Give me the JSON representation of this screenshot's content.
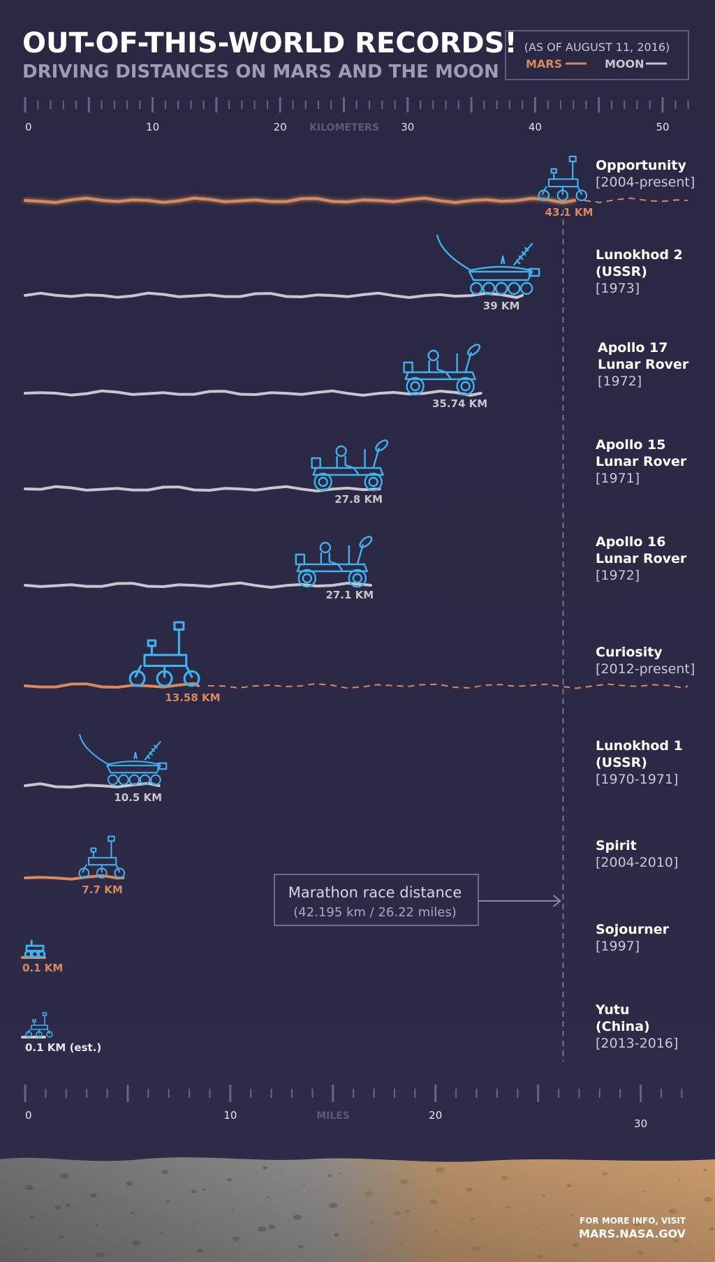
{
  "header": {
    "title": "OUT-OF-THIS-WORLD RECORDS!",
    "subtitle": "DRIVING DISTANCES ON MARS AND THE MOON"
  },
  "legend": {
    "date": "(AS OF AUGUST 11, 2016)",
    "mars": "MARS",
    "moon": "MOON"
  },
  "colors": {
    "mars": "#d88a5c",
    "moon": "#c8c6cc",
    "rover": "#3fb3ee",
    "background": "#2a2843",
    "axis": "#66658a"
  },
  "axis": {
    "km_label": "KILOMETERS",
    "miles_label": "MILES"
  },
  "marathon": {
    "title": "Marathon race distance",
    "detail": "(42.195 km / 26.22 miles)"
  },
  "footer": {
    "line1": "FOR MORE INFO, VISIT",
    "line2": "MARS.NASA.GOV"
  },
  "chart_data": {
    "type": "bar",
    "title": "OUT-OF-THIS-WORLD RECORDS!",
    "subtitle": "DRIVING DISTANCES ON MARS AND THE MOON",
    "xlabel": "KILOMETERS",
    "xlabel_secondary": "MILES",
    "xlim_km": [
      0,
      52
    ],
    "x_ticks_km": [
      0,
      10,
      20,
      30,
      40,
      50
    ],
    "x_ticks_miles": [
      0,
      10,
      20,
      30
    ],
    "reference_line": {
      "label": "Marathon race distance",
      "km": 42.195,
      "miles": 26.22
    },
    "legend_position": "top-right",
    "series": [
      {
        "name": "Opportunity",
        "detail": "",
        "years": "[2004-present]",
        "body": "mars",
        "km": 43.1,
        "label": "43.1 KM",
        "ongoing": true
      },
      {
        "name": "Lunokhod 2",
        "detail": "(USSR)",
        "years": "[1973]",
        "body": "moon",
        "km": 39,
        "label": "39 KM",
        "ongoing": false
      },
      {
        "name": "Apollo 17",
        "detail": "Lunar Rover",
        "years": "[1972]",
        "body": "moon",
        "km": 35.74,
        "label": "35.74 KM",
        "ongoing": false
      },
      {
        "name": "Apollo 15",
        "detail": "Lunar Rover",
        "years": "[1971]",
        "body": "moon",
        "km": 27.8,
        "label": "27.8 KM",
        "ongoing": false
      },
      {
        "name": "Apollo 16",
        "detail": "Lunar Rover",
        "years": "[1972]",
        "body": "moon",
        "km": 27.1,
        "label": "27.1 KM",
        "ongoing": false
      },
      {
        "name": "Curiosity",
        "detail": "",
        "years": "[2012-present]",
        "body": "mars",
        "km": 13.58,
        "label": "13.58 KM",
        "ongoing": true
      },
      {
        "name": "Lunokhod 1",
        "detail": "(USSR)",
        "years": "[1970-1971]",
        "body": "moon",
        "km": 10.5,
        "label": "10.5 KM",
        "ongoing": false
      },
      {
        "name": "Spirit",
        "detail": "",
        "years": "[2004-2010]",
        "body": "mars",
        "km": 7.7,
        "label": "7.7 KM",
        "ongoing": false
      },
      {
        "name": "Sojourner",
        "detail": "",
        "years": "[1997]",
        "body": "mars",
        "km": 0.1,
        "label": "0.1 KM",
        "ongoing": false
      },
      {
        "name": "Yutu",
        "detail": "(China)",
        "years": "[2013-2016]",
        "body": "moon",
        "km": 0.1,
        "label": "0.1 KM (est.)",
        "ongoing": false
      }
    ]
  }
}
